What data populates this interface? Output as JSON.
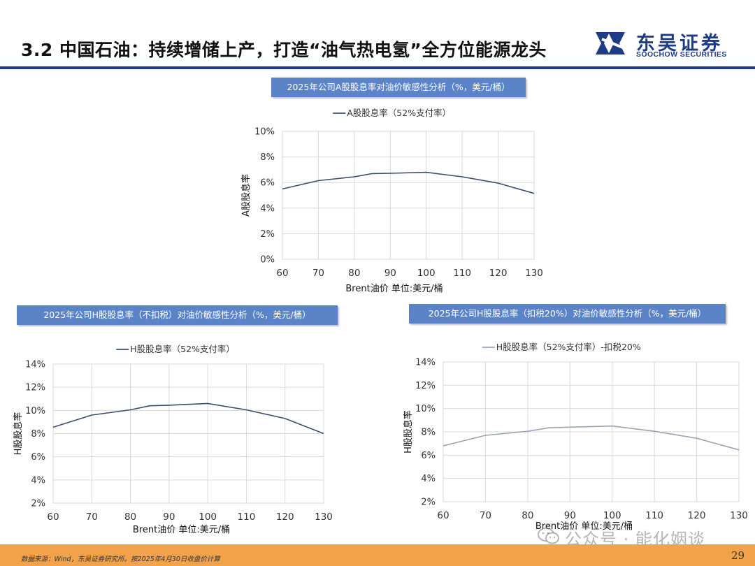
{
  "header": {
    "title": "3.2 中国石油：持续增储上产，打造“油气热电氢”全方位能源龙头",
    "brand_cn": "东吴证券",
    "brand_en": "SOOCHOW SECURITIES"
  },
  "footer": {
    "source": "数据来源：Wind，东吴证券研究所。按2025年4月30日收盘价计算",
    "page_number": "29",
    "watermark": "公众号 · 能化姻谈"
  },
  "colors": {
    "brand_blue": "#1e3c85",
    "caption_fill": "#5b83c8",
    "footer_orange": "#f2a24a",
    "series_dark": "#3a4e6e",
    "series_light": "#9aa4b2",
    "grid": "#d9d9d9"
  },
  "chart_data": [
    {
      "id": "a",
      "caption": "2025年公司A股股息率对油价敏感性分析（%，美元/桶）",
      "type": "line",
      "title": "",
      "xlabel": "Brent油价  单位:美元/桶",
      "ylabel": "A股股息率",
      "xlim": [
        60,
        130
      ],
      "xticks": [
        60,
        70,
        80,
        90,
        100,
        110,
        120,
        130
      ],
      "ylim": [
        0,
        10
      ],
      "yticks": [
        0,
        2,
        4,
        6,
        8,
        10
      ],
      "ytick_labels": [
        "0%",
        "2%",
        "4%",
        "6%",
        "8%",
        "10%"
      ],
      "grid": true,
      "legend": "top-center",
      "series": [
        {
          "name": "A股股息率（52%支付率）",
          "color": "#3a4e6e",
          "x": [
            60,
            70,
            80,
            85,
            90,
            100,
            110,
            120,
            130
          ],
          "y": [
            5.5,
            6.15,
            6.45,
            6.7,
            6.72,
            6.8,
            6.45,
            5.95,
            5.15
          ]
        }
      ]
    },
    {
      "id": "b",
      "caption": "2025年公司H股股息率（不扣税）对油价敏感性分析（%，美元/桶）",
      "type": "line",
      "title": "",
      "xlabel": "Brent油价  单位:美元/桶",
      "ylabel": "H股股息率",
      "xlim": [
        60,
        130
      ],
      "xticks": [
        60,
        70,
        80,
        90,
        100,
        110,
        120,
        130
      ],
      "ylim": [
        2,
        14
      ],
      "yticks": [
        2,
        4,
        6,
        8,
        10,
        12,
        14
      ],
      "ytick_labels": [
        "2%",
        "4%",
        "6%",
        "8%",
        "10%",
        "12%",
        "14%"
      ],
      "grid": true,
      "legend": "top-center",
      "series": [
        {
          "name": "H股股息率（52%支付率）",
          "color": "#3a4e6e",
          "x": [
            60,
            70,
            80,
            85,
            90,
            100,
            110,
            120,
            130
          ],
          "y": [
            8.55,
            9.6,
            10.05,
            10.4,
            10.45,
            10.6,
            10.05,
            9.3,
            8.0
          ]
        }
      ]
    },
    {
      "id": "c",
      "caption": "2025年公司H股股息率（扣税20%）对油价敏感性分析（%，美元/桶）",
      "type": "line",
      "title": "",
      "xlabel": "Brent油价  单位:美元/桶",
      "ylabel": "H股股息率",
      "xlim": [
        60,
        130
      ],
      "xticks": [
        60,
        70,
        80,
        90,
        100,
        110,
        120,
        130
      ],
      "ylim": [
        2,
        14
      ],
      "yticks": [
        2,
        4,
        6,
        8,
        10,
        12,
        14
      ],
      "ytick_labels": [
        "2%",
        "4%",
        "6%",
        "8%",
        "10%",
        "12%",
        "14%"
      ],
      "grid": true,
      "legend": "top-center",
      "series": [
        {
          "name": "H股股息率（52%支付率）-扣税20%",
          "color": "#9aa4b2",
          "x": [
            60,
            70,
            80,
            85,
            90,
            100,
            110,
            120,
            130
          ],
          "y": [
            6.8,
            7.7,
            8.05,
            8.35,
            8.4,
            8.5,
            8.05,
            7.45,
            6.45
          ]
        }
      ]
    }
  ]
}
